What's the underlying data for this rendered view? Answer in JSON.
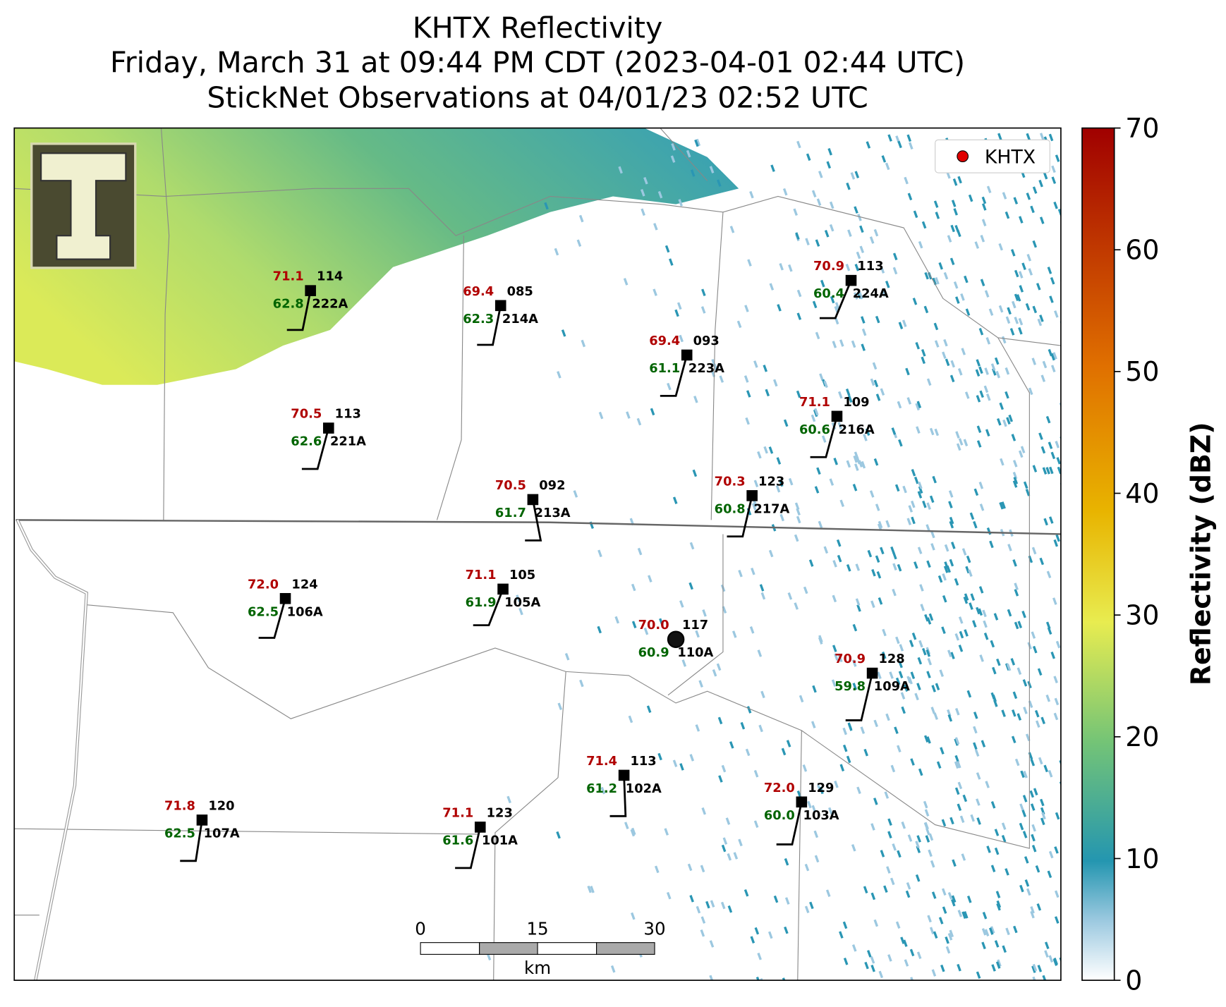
{
  "header": {
    "title_lines": [
      "KHTX Reflectivity",
      "Friday, March 31 at 09:44 PM CDT (2023-04-01 02:44 UTC)",
      "StickNet Observations at 04/01/23 02:52 UTC"
    ]
  },
  "legend": {
    "label": "KHTX"
  },
  "colorbar": {
    "label": "Reflectivity (dBZ)",
    "lim": [
      0,
      70
    ],
    "ticks": [
      0,
      10,
      20,
      30,
      40,
      50,
      60,
      70
    ]
  },
  "scale_bar": {
    "ticks": [
      0,
      15,
      30
    ],
    "unit": "km"
  },
  "stations": [
    {
      "id": "222A",
      "temperature": "71.1",
      "dewpoint": "62.8",
      "pressure": "114"
    },
    {
      "id": "214A",
      "temperature": "69.4",
      "dewpoint": "62.3",
      "pressure": "085"
    },
    {
      "id": "223A",
      "temperature": "69.4",
      "dewpoint": "61.1",
      "pressure": "093"
    },
    {
      "id": "224A",
      "temperature": "70.9",
      "dewpoint": "60.4",
      "pressure": "113"
    },
    {
      "id": "221A",
      "temperature": "70.5",
      "dewpoint": "62.6",
      "pressure": "113"
    },
    {
      "id": "216A",
      "temperature": "71.1",
      "dewpoint": "60.6",
      "pressure": "109"
    },
    {
      "id": "213A",
      "temperature": "70.5",
      "dewpoint": "61.7",
      "pressure": "092"
    },
    {
      "id": "217A",
      "temperature": "70.3",
      "dewpoint": "60.8",
      "pressure": "123"
    },
    {
      "id": "106A",
      "temperature": "72.0",
      "dewpoint": "62.5",
      "pressure": "124"
    },
    {
      "id": "105A",
      "temperature": "71.1",
      "dewpoint": "61.9",
      "pressure": "105"
    },
    {
      "id": "110A",
      "temperature": "70.0",
      "dewpoint": "60.9",
      "pressure": "117"
    },
    {
      "id": "109A",
      "temperature": "70.9",
      "dewpoint": "59.8",
      "pressure": "128"
    },
    {
      "id": "102A",
      "temperature": "71.4",
      "dewpoint": "61.2",
      "pressure": "113"
    },
    {
      "id": "103A",
      "temperature": "72.0",
      "dewpoint": "60.0",
      "pressure": "129"
    },
    {
      "id": "107A",
      "temperature": "71.8",
      "dewpoint": "62.5",
      "pressure": "120"
    },
    {
      "id": "101A",
      "temperature": "71.1",
      "dewpoint": "61.6",
      "pressure": "123"
    }
  ]
}
